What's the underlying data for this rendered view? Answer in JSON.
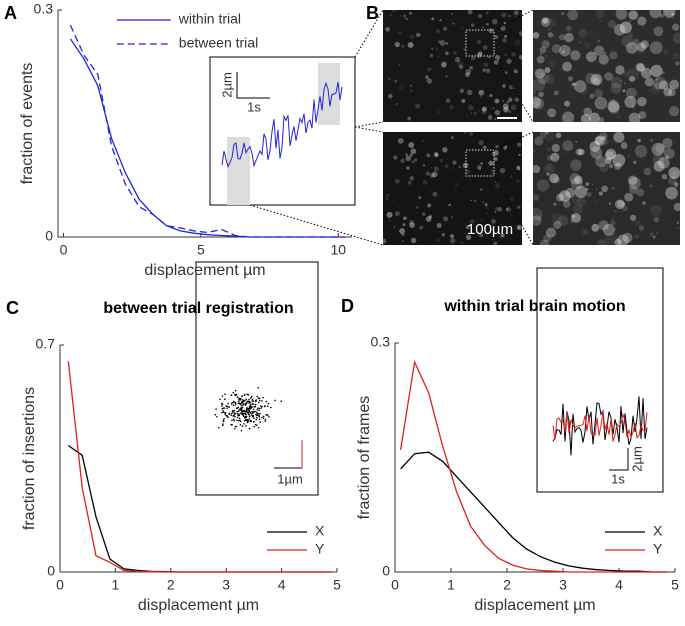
{
  "panel_b": {
    "label": "B",
    "scale_bar": "100µm"
  },
  "insets": {
    "A": {
      "y_scale": "2µm",
      "x_scale": "1s"
    },
    "C": {
      "scale": "1µm"
    },
    "D": {
      "y_scale": "2µm",
      "x_scale": "1s"
    }
  },
  "chart_data": [
    {
      "type": "line",
      "panel": "A",
      "xlabel": "displacement µm",
      "ylabel": "fraction of events",
      "x": [
        0.25,
        0.75,
        1.25,
        1.75,
        2.25,
        2.75,
        3.25,
        3.75,
        4.25,
        4.75,
        5.25,
        5.75,
        6.25,
        6.75,
        7.25,
        7.75,
        8.25,
        8.75,
        9.25,
        9.75,
        10.25
      ],
      "series": [
        {
          "name": "within trial",
          "color": "#2424e0",
          "dash": false,
          "values": [
            0.262,
            0.235,
            0.2,
            0.13,
            0.085,
            0.05,
            0.03,
            0.015,
            0.008,
            0.005,
            0.003,
            0.002,
            0.001,
            0,
            0,
            0,
            0,
            0,
            0,
            0,
            0
          ]
        },
        {
          "name": "between trial",
          "color": "#2424e0",
          "dash": true,
          "values": [
            0.28,
            0.24,
            0.215,
            0.12,
            0.07,
            0.04,
            0.03,
            0.015,
            0.012,
            0.008,
            0.006,
            0.01,
            0.002,
            0,
            0,
            0,
            0,
            0,
            0,
            0,
            0
          ]
        }
      ],
      "xlim": [
        -0.2,
        10.5
      ],
      "ylim": [
        0,
        0.3
      ],
      "xticks": [
        0,
        5,
        10
      ],
      "yticks": [
        0,
        0.3
      ],
      "legend": "upper center"
    },
    {
      "type": "line",
      "panel": "C",
      "title": "between trial registration",
      "xlabel": "displacement µm",
      "ylabel": "fraction of insertions",
      "x": [
        0.15,
        0.4,
        0.65,
        0.9,
        1.15,
        1.4,
        1.65,
        1.9,
        2.15,
        2.4,
        2.65,
        2.9,
        3.15,
        3.4,
        3.65,
        3.9,
        4.15,
        4.4,
        4.65,
        4.9
      ],
      "series": [
        {
          "name": "X",
          "color": "#000000",
          "dash": false,
          "values": [
            0.39,
            0.36,
            0.17,
            0.04,
            0.01,
            0.005,
            0.002,
            0.001,
            0,
            0,
            0,
            0,
            0,
            0,
            0,
            0,
            0,
            0,
            0,
            0
          ]
        },
        {
          "name": "Y",
          "color": "#e0201c",
          "dash": false,
          "values": [
            0.65,
            0.26,
            0.05,
            0.03,
            0.005,
            0.002,
            0.001,
            0,
            0,
            0,
            0,
            0,
            0,
            0,
            0,
            0,
            0,
            0,
            0,
            0
          ]
        }
      ],
      "xlim": [
        0,
        5
      ],
      "ylim": [
        0,
        0.7
      ],
      "xticks": [
        0,
        1,
        2,
        3,
        4,
        5
      ],
      "yticks": [
        0,
        0.7
      ],
      "legend": "lower right"
    },
    {
      "type": "line",
      "panel": "D",
      "title": "within trial brain motion",
      "xlabel": "displacement µm",
      "ylabel": "fraction of frames",
      "x": [
        0.1,
        0.35,
        0.6,
        0.85,
        1.1,
        1.35,
        1.6,
        1.85,
        2.1,
        2.35,
        2.6,
        2.85,
        3.1,
        3.35,
        3.6,
        3.85,
        4.1,
        4.35,
        4.6,
        4.85
      ],
      "series": [
        {
          "name": "X",
          "color": "#000000",
          "dash": false,
          "values": [
            0.135,
            0.155,
            0.157,
            0.145,
            0.125,
            0.105,
            0.085,
            0.065,
            0.045,
            0.03,
            0.02,
            0.013,
            0.008,
            0.005,
            0.003,
            0.002,
            0.001,
            0.001,
            0,
            0
          ]
        },
        {
          "name": "Y",
          "color": "#e0201c",
          "dash": false,
          "values": [
            0.16,
            0.275,
            0.235,
            0.165,
            0.105,
            0.06,
            0.035,
            0.018,
            0.009,
            0.004,
            0.002,
            0.001,
            0,
            0,
            0,
            0,
            0,
            0,
            0,
            0
          ]
        }
      ],
      "xlim": [
        0,
        5
      ],
      "ylim": [
        0,
        0.3
      ],
      "xticks": [
        0,
        1,
        2,
        3,
        4,
        5
      ],
      "yticks": [
        0,
        0.3
      ],
      "legend": "lower right"
    }
  ]
}
